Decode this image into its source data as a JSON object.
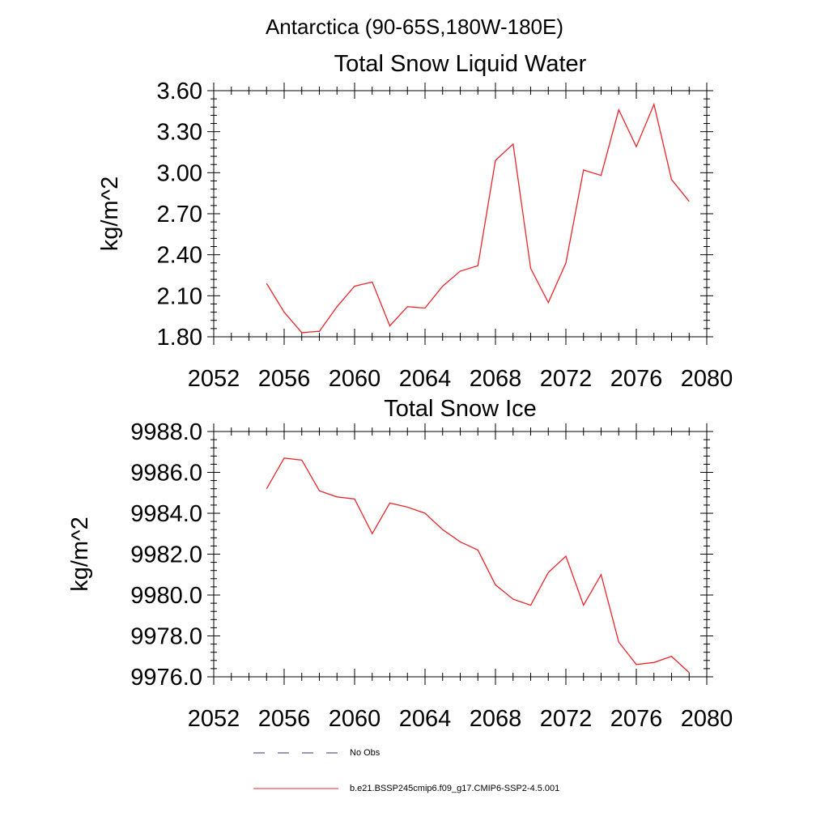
{
  "figure_title": "Antarctica (90-65S,180W-180E)",
  "legend": {
    "items": [
      {
        "label": "No Obs",
        "style": "dashed",
        "color": "#333366"
      },
      {
        "label": "b.e21.BSSP245cmip6.f09_g17.CMIP6-SSP2-4.5.001",
        "style": "solid",
        "color": "#e8262b"
      }
    ]
  },
  "chart_data": [
    {
      "type": "line",
      "title": "Total Snow Liquid Water",
      "xlabel": "",
      "ylabel": "kg/m^2",
      "xlim": [
        2052,
        2080
      ],
      "ylim": [
        1.8,
        3.6
      ],
      "xticks": [
        2052,
        2056,
        2060,
        2064,
        2068,
        2072,
        2076,
        2080
      ],
      "yticks": [
        1.8,
        2.1,
        2.4,
        2.7,
        3.0,
        3.3,
        3.6
      ],
      "yticklabels": [
        "1.80",
        "2.10",
        "2.40",
        "2.70",
        "3.00",
        "3.30",
        "3.60"
      ],
      "xticklabels": [
        "2052",
        "2056",
        "2060",
        "2064",
        "2068",
        "2072",
        "2076",
        "2080"
      ],
      "grid": false,
      "series": [
        {
          "name": "b.e21.BSSP245cmip6.f09_g17.CMIP6-SSP2-4.5.001",
          "color": "#e8262b",
          "x": [
            2055,
            2056,
            2057,
            2058,
            2059,
            2060,
            2061,
            2062,
            2063,
            2064,
            2065,
            2066,
            2067,
            2068,
            2069,
            2070,
            2071,
            2072,
            2073,
            2074,
            2075,
            2076,
            2077,
            2078,
            2079
          ],
          "values": [
            2.19,
            1.98,
            1.83,
            1.84,
            2.02,
            2.17,
            2.2,
            1.88,
            2.02,
            2.01,
            2.17,
            2.28,
            2.32,
            3.09,
            3.21,
            2.3,
            2.05,
            2.34,
            3.02,
            2.98,
            3.46,
            3.19,
            3.5,
            2.95,
            2.79
          ]
        }
      ]
    },
    {
      "type": "line",
      "title": "Total Snow Ice",
      "xlabel": "",
      "ylabel": "kg/m^2",
      "xlim": [
        2052,
        2080
      ],
      "ylim": [
        9976.0,
        9988.0
      ],
      "xticks": [
        2052,
        2056,
        2060,
        2064,
        2068,
        2072,
        2076,
        2080
      ],
      "yticks": [
        9976.0,
        9978.0,
        9980.0,
        9982.0,
        9984.0,
        9986.0,
        9988.0
      ],
      "yticklabels": [
        "9976.0",
        "9978.0",
        "9980.0",
        "9982.0",
        "9984.0",
        "9986.0",
        "9988.0"
      ],
      "xticklabels": [
        "2052",
        "2056",
        "2060",
        "2064",
        "2068",
        "2072",
        "2076",
        "2080"
      ],
      "grid": false,
      "series": [
        {
          "name": "b.e21.BSSP245cmip6.f09_g17.CMIP6-SSP2-4.5.001",
          "color": "#e8262b",
          "x": [
            2055,
            2056,
            2057,
            2058,
            2059,
            2060,
            2061,
            2062,
            2063,
            2064,
            2065,
            2066,
            2067,
            2068,
            2069,
            2070,
            2071,
            2072,
            2073,
            2074,
            2075,
            2076,
            2077,
            2078,
            2079
          ],
          "values": [
            9985.2,
            9986.7,
            9986.6,
            9985.1,
            9984.8,
            9984.7,
            9983.0,
            9984.5,
            9984.3,
            9984.0,
            9983.2,
            9982.6,
            9982.2,
            9980.5,
            9979.8,
            9979.5,
            9981.1,
            9981.9,
            9979.5,
            9981.0,
            9977.7,
            9976.6,
            9976.7,
            9977.0,
            9976.2
          ]
        }
      ]
    }
  ]
}
